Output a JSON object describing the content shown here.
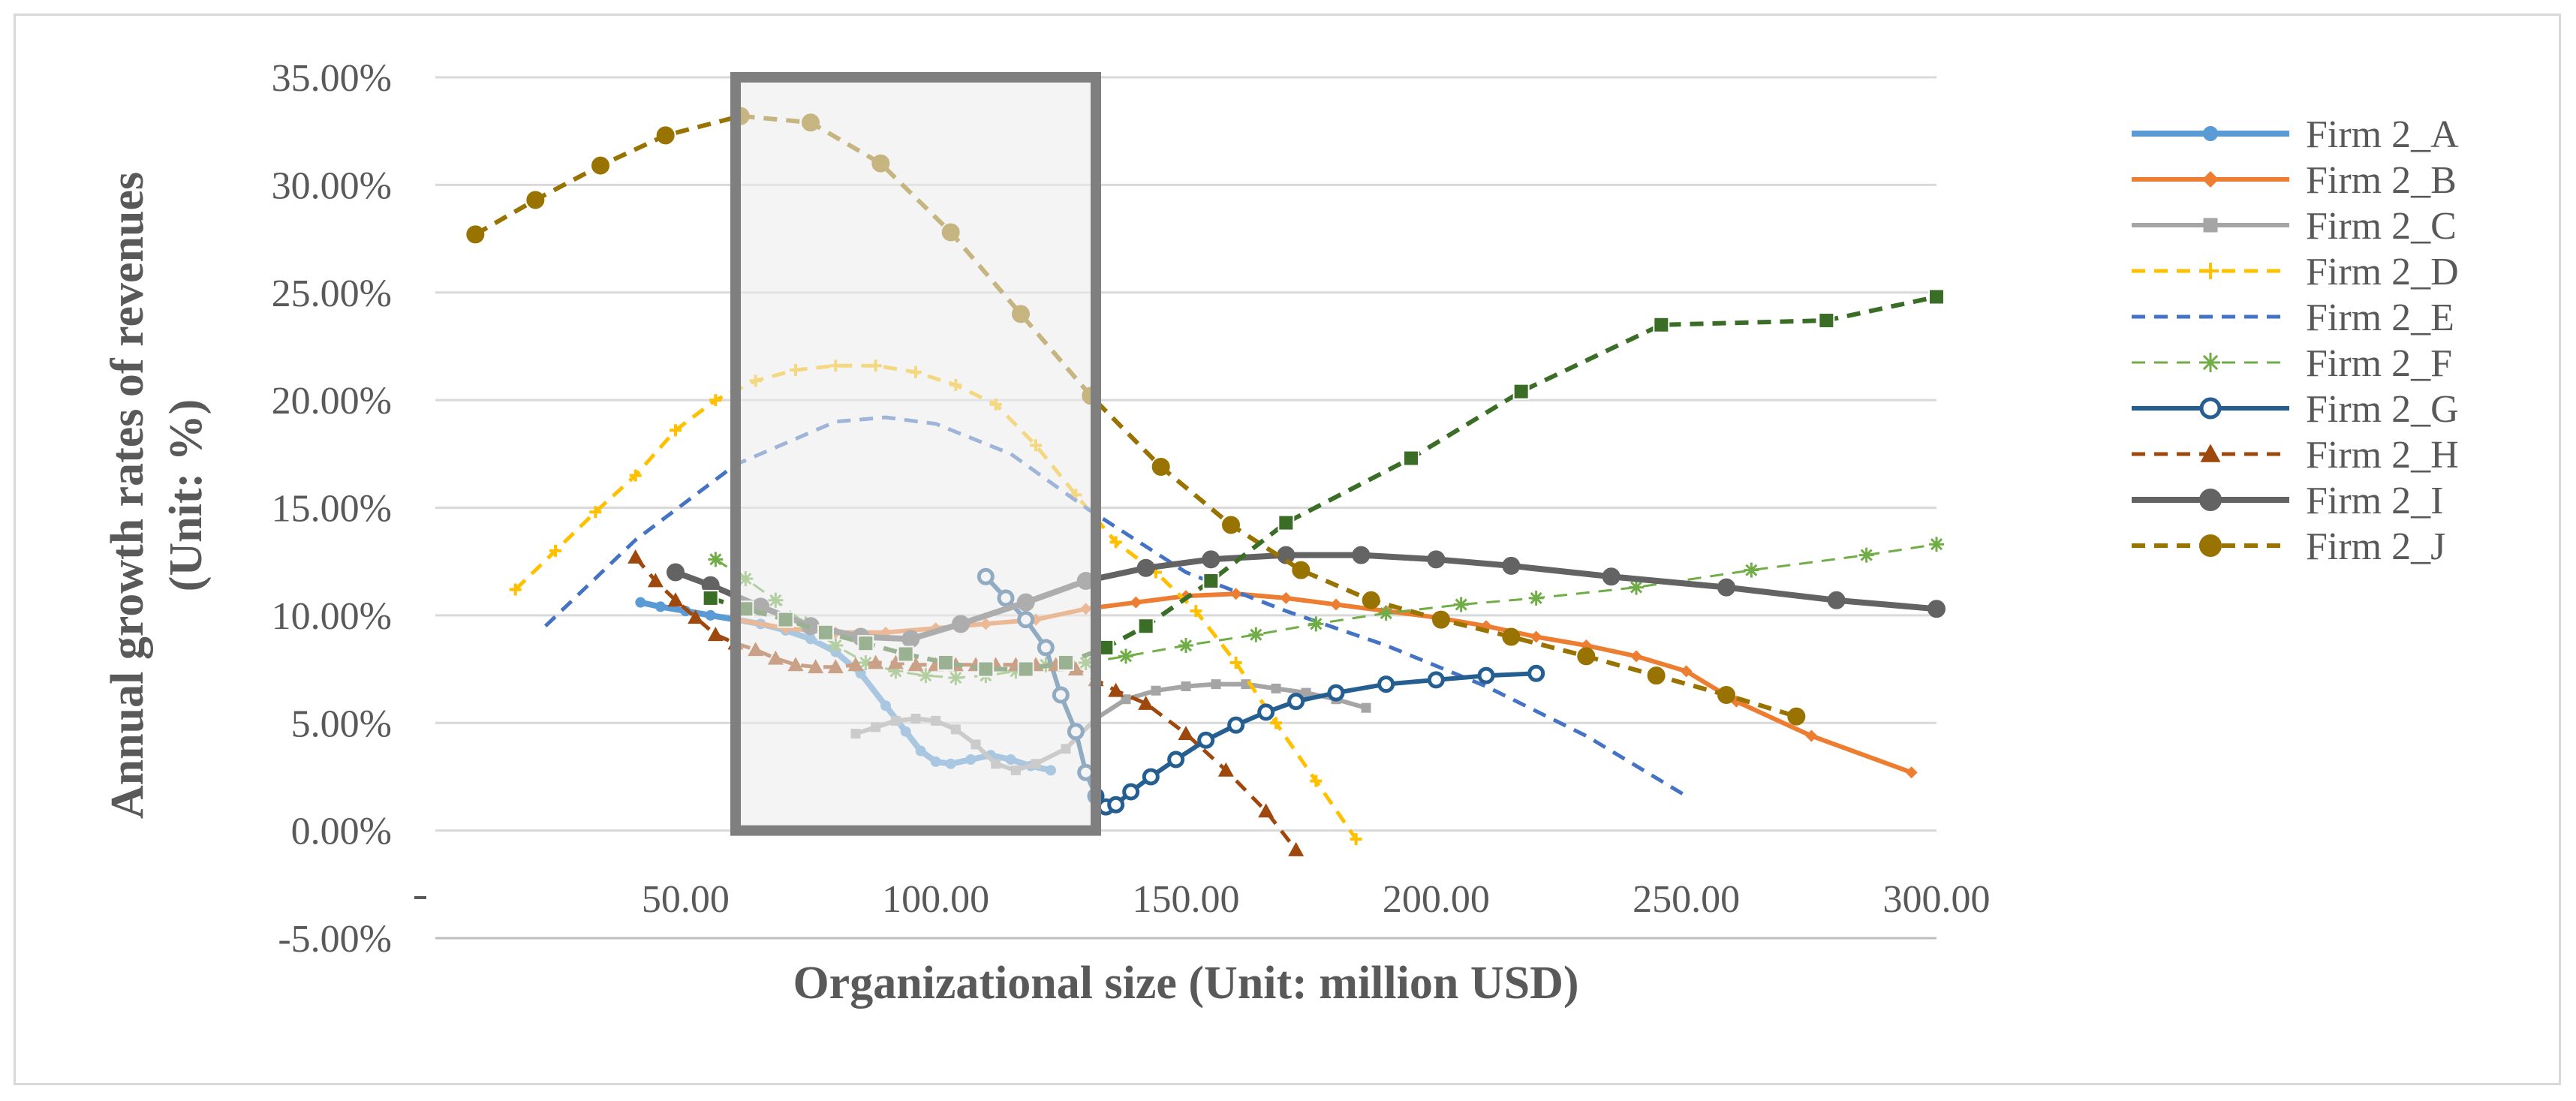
{
  "chart_data": {
    "type": "line",
    "title": "",
    "xlabel": "Organizational size (Unit: million USD)",
    "ylabel_line1": "Annual growth rates of revenues",
    "ylabel_line2": "(Unit: %)",
    "xlim": [
      0,
      300
    ],
    "ylim": [
      -5,
      35
    ],
    "xticks": [
      50,
      100,
      150,
      200,
      250,
      300
    ],
    "xtick_labels": [
      "50.00",
      "100.00",
      "150.00",
      "200.00",
      "250.00",
      "300.00"
    ],
    "yticks": [
      -5,
      0,
      5,
      10,
      15,
      20,
      25,
      30,
      35
    ],
    "ytick_labels": [
      "-5.00%",
      "0.00%",
      "5.00%",
      "10.00%",
      "15.00%",
      "20.00%",
      "25.00%",
      "30.00%",
      "35.00%"
    ],
    "grid": true,
    "legend_position": "right",
    "highlight_region": {
      "x": [
        60,
        132
      ],
      "y": [
        0,
        35
      ]
    },
    "series": [
      {
        "name": "Firm 2_A",
        "color": "#5b9bd5",
        "dash": "solid",
        "marker": "circle",
        "width": 8,
        "msize": 12,
        "points": [
          [
            41,
            10.6
          ],
          [
            45,
            10.4
          ],
          [
            50,
            10.2
          ],
          [
            55,
            10.0
          ],
          [
            60,
            9.8
          ],
          [
            65,
            9.6
          ],
          [
            70,
            9.3
          ],
          [
            75,
            8.9
          ],
          [
            80,
            8.3
          ],
          [
            85,
            7.3
          ],
          [
            90,
            5.8
          ],
          [
            94,
            4.6
          ],
          [
            97,
            3.7
          ],
          [
            100,
            3.2
          ],
          [
            103,
            3.1
          ],
          [
            107,
            3.3
          ],
          [
            111,
            3.5
          ],
          [
            115,
            3.3
          ],
          [
            119,
            3.0
          ],
          [
            123,
            2.8
          ]
        ]
      },
      {
        "name": "Firm 2_B",
        "color": "#ed7d31",
        "dash": "solid",
        "marker": "diamond",
        "width": 6,
        "msize": 16,
        "points": [
          [
            60,
            9.8
          ],
          [
            70,
            9.4
          ],
          [
            80,
            9.2
          ],
          [
            90,
            9.2
          ],
          [
            100,
            9.4
          ],
          [
            110,
            9.6
          ],
          [
            120,
            9.8
          ],
          [
            130,
            10.3
          ],
          [
            140,
            10.6
          ],
          [
            150,
            10.9
          ],
          [
            160,
            11.0
          ],
          [
            170,
            10.8
          ],
          [
            180,
            10.5
          ],
          [
            190,
            10.2
          ],
          [
            200,
            9.9
          ],
          [
            210,
            9.5
          ],
          [
            220,
            9.0
          ],
          [
            230,
            8.6
          ],
          [
            240,
            8.1
          ],
          [
            250,
            7.4
          ],
          [
            260,
            6.0
          ],
          [
            275,
            4.4
          ],
          [
            295,
            2.7
          ]
        ]
      },
      {
        "name": "Firm 2_C",
        "color": "#a5a5a5",
        "dash": "solid",
        "marker": "square",
        "width": 6,
        "msize": 13,
        "points": [
          [
            84,
            4.5
          ],
          [
            88,
            4.8
          ],
          [
            92,
            5.1
          ],
          [
            96,
            5.2
          ],
          [
            100,
            5.1
          ],
          [
            104,
            4.7
          ],
          [
            108,
            4.0
          ],
          [
            112,
            3.1
          ],
          [
            116,
            2.8
          ],
          [
            120,
            3.1
          ],
          [
            126,
            3.8
          ],
          [
            132,
            5.2
          ],
          [
            138,
            6.1
          ],
          [
            144,
            6.5
          ],
          [
            150,
            6.7
          ],
          [
            156,
            6.8
          ],
          [
            162,
            6.8
          ],
          [
            168,
            6.6
          ],
          [
            174,
            6.4
          ],
          [
            180,
            6.1
          ],
          [
            186,
            5.7
          ]
        ]
      },
      {
        "name": "Firm 2_D",
        "color": "#ffc000",
        "dash": "dashed",
        "marker": "plus",
        "width": 5,
        "msize": 16,
        "points": [
          [
            16,
            11.2
          ],
          [
            24,
            13.0
          ],
          [
            32,
            14.8
          ],
          [
            40,
            16.5
          ],
          [
            48,
            18.6
          ],
          [
            56,
            20.0
          ],
          [
            64,
            20.9
          ],
          [
            72,
            21.4
          ],
          [
            80,
            21.6
          ],
          [
            88,
            21.6
          ],
          [
            96,
            21.3
          ],
          [
            104,
            20.7
          ],
          [
            112,
            19.8
          ],
          [
            120,
            17.9
          ],
          [
            128,
            15.6
          ],
          [
            136,
            13.4
          ],
          [
            144,
            12.0
          ],
          [
            152,
            10.2
          ],
          [
            160,
            7.8
          ],
          [
            168,
            5.0
          ],
          [
            176,
            2.3
          ],
          [
            184,
            -0.4
          ]
        ]
      },
      {
        "name": "Firm 2_E",
        "color": "#4472c4",
        "dash": "dashed",
        "marker": "none",
        "width": 5,
        "msize": 0,
        "points": [
          [
            22,
            9.5
          ],
          [
            40,
            13.5
          ],
          [
            60,
            17.0
          ],
          [
            80,
            19.0
          ],
          [
            90,
            19.2
          ],
          [
            100,
            18.9
          ],
          [
            115,
            17.5
          ],
          [
            130,
            15.0
          ],
          [
            150,
            12.0
          ],
          [
            170,
            10.2
          ],
          [
            190,
            8.6
          ],
          [
            210,
            6.7
          ],
          [
            230,
            4.4
          ],
          [
            250,
            1.6
          ]
        ]
      },
      {
        "name": "Firm 2_F",
        "color": "#70ad47",
        "dash": "dashed",
        "marker": "asterisk",
        "width": 3,
        "msize": 20,
        "points": [
          [
            56,
            12.6
          ],
          [
            62,
            11.7
          ],
          [
            68,
            10.7
          ],
          [
            74,
            9.6
          ],
          [
            80,
            8.6
          ],
          [
            86,
            7.8
          ],
          [
            92,
            7.4
          ],
          [
            98,
            7.2
          ],
          [
            104,
            7.1
          ],
          [
            110,
            7.2
          ],
          [
            116,
            7.4
          ],
          [
            122,
            7.7
          ],
          [
            130,
            7.8
          ],
          [
            138,
            8.1
          ],
          [
            150,
            8.6
          ],
          [
            164,
            9.1
          ],
          [
            176,
            9.6
          ],
          [
            190,
            10.1
          ],
          [
            205,
            10.5
          ],
          [
            220,
            10.8
          ],
          [
            240,
            11.3
          ],
          [
            263,
            12.1
          ],
          [
            286,
            12.8
          ],
          [
            300,
            13.3
          ]
        ]
      },
      {
        "name": "Firm 2_G",
        "color": "#255e91",
        "dash": "solid",
        "marker": "circle-open",
        "width": 6,
        "msize": 18,
        "points": [
          [
            110,
            11.8
          ],
          [
            114,
            10.8
          ],
          [
            118,
            9.8
          ],
          [
            122,
            8.5
          ],
          [
            125,
            6.3
          ],
          [
            128,
            4.6
          ],
          [
            130,
            2.7
          ],
          [
            132,
            1.6
          ],
          [
            134,
            1.1
          ],
          [
            136,
            1.2
          ],
          [
            139,
            1.8
          ],
          [
            143,
            2.5
          ],
          [
            148,
            3.3
          ],
          [
            154,
            4.2
          ],
          [
            160,
            4.9
          ],
          [
            166,
            5.5
          ],
          [
            172,
            6.0
          ],
          [
            180,
            6.4
          ],
          [
            190,
            6.8
          ],
          [
            200,
            7.0
          ],
          [
            210,
            7.2
          ],
          [
            220,
            7.3
          ]
        ]
      },
      {
        "name": "Firm 2_H",
        "color": "#9e480e",
        "dash": "dashed",
        "marker": "triangle",
        "width": 5,
        "msize": 21,
        "points": [
          [
            40,
            12.7
          ],
          [
            44,
            11.6
          ],
          [
            48,
            10.7
          ],
          [
            52,
            9.9
          ],
          [
            56,
            9.1
          ],
          [
            60,
            8.7
          ],
          [
            64,
            8.4
          ],
          [
            68,
            8.0
          ],
          [
            72,
            7.7
          ],
          [
            76,
            7.6
          ],
          [
            80,
            7.6
          ],
          [
            84,
            7.7
          ],
          [
            88,
            7.8
          ],
          [
            92,
            7.8
          ],
          [
            96,
            7.7
          ],
          [
            100,
            7.7
          ],
          [
            104,
            7.7
          ],
          [
            108,
            7.7
          ],
          [
            112,
            7.7
          ],
          [
            116,
            7.7
          ],
          [
            120,
            7.7
          ],
          [
            124,
            7.7
          ],
          [
            128,
            7.5
          ],
          [
            132,
            7.0
          ],
          [
            136,
            6.5
          ],
          [
            142,
            5.9
          ],
          [
            150,
            4.5
          ],
          [
            158,
            2.8
          ],
          [
            166,
            0.9
          ],
          [
            172,
            -0.9
          ]
        ]
      },
      {
        "name": "Firm 2_I",
        "color": "#636363",
        "dash": "solid",
        "marker": "circle",
        "width": 8,
        "msize": 22,
        "points": [
          [
            48,
            12.0
          ],
          [
            55,
            11.4
          ],
          [
            65,
            10.4
          ],
          [
            75,
            9.5
          ],
          [
            85,
            9.0
          ],
          [
            95,
            8.9
          ],
          [
            105,
            9.6
          ],
          [
            118,
            10.6
          ],
          [
            130,
            11.6
          ],
          [
            142,
            12.2
          ],
          [
            155,
            12.6
          ],
          [
            170,
            12.8
          ],
          [
            185,
            12.8
          ],
          [
            200,
            12.6
          ],
          [
            215,
            12.3
          ],
          [
            235,
            11.8
          ],
          [
            258,
            11.3
          ],
          [
            280,
            10.7
          ],
          [
            300,
            10.3
          ]
        ]
      },
      {
        "name": "Firm 2_J",
        "color": "#997300",
        "dash": "dashed",
        "marker": "circle-fill",
        "width": 6,
        "msize": 22,
        "points": [
          [
            8,
            27.7
          ],
          [
            20,
            29.3
          ],
          [
            33,
            30.9
          ],
          [
            46,
            32.3
          ],
          [
            61,
            33.2
          ],
          [
            75,
            32.9
          ],
          [
            89,
            31.0
          ],
          [
            103,
            27.8
          ],
          [
            117,
            24.0
          ],
          [
            131,
            20.2
          ],
          [
            145,
            16.9
          ],
          [
            159,
            14.2
          ],
          [
            173,
            12.1
          ],
          [
            187,
            10.7
          ],
          [
            201,
            9.8
          ],
          [
            215,
            9.0
          ],
          [
            230,
            8.1
          ],
          [
            244,
            7.2
          ],
          [
            258,
            6.3
          ],
          [
            272,
            5.3
          ]
        ]
      },
      {
        "name": "",
        "color": "#3a6e27",
        "dash": "dashed",
        "marker": "square-big",
        "width": 6,
        "msize": 20,
        "points": [
          [
            55,
            10.8
          ],
          [
            62,
            10.3
          ],
          [
            70,
            9.8
          ],
          [
            78,
            9.2
          ],
          [
            86,
            8.7
          ],
          [
            94,
            8.2
          ],
          [
            102,
            7.8
          ],
          [
            110,
            7.5
          ],
          [
            118,
            7.5
          ],
          [
            126,
            7.8
          ],
          [
            134,
            8.5
          ],
          [
            142,
            9.5
          ],
          [
            155,
            11.6
          ],
          [
            170,
            14.3
          ],
          [
            195,
            17.3
          ],
          [
            217,
            20.4
          ],
          [
            245,
            23.5
          ],
          [
            278,
            23.7
          ],
          [
            300,
            24.8
          ]
        ]
      }
    ]
  }
}
